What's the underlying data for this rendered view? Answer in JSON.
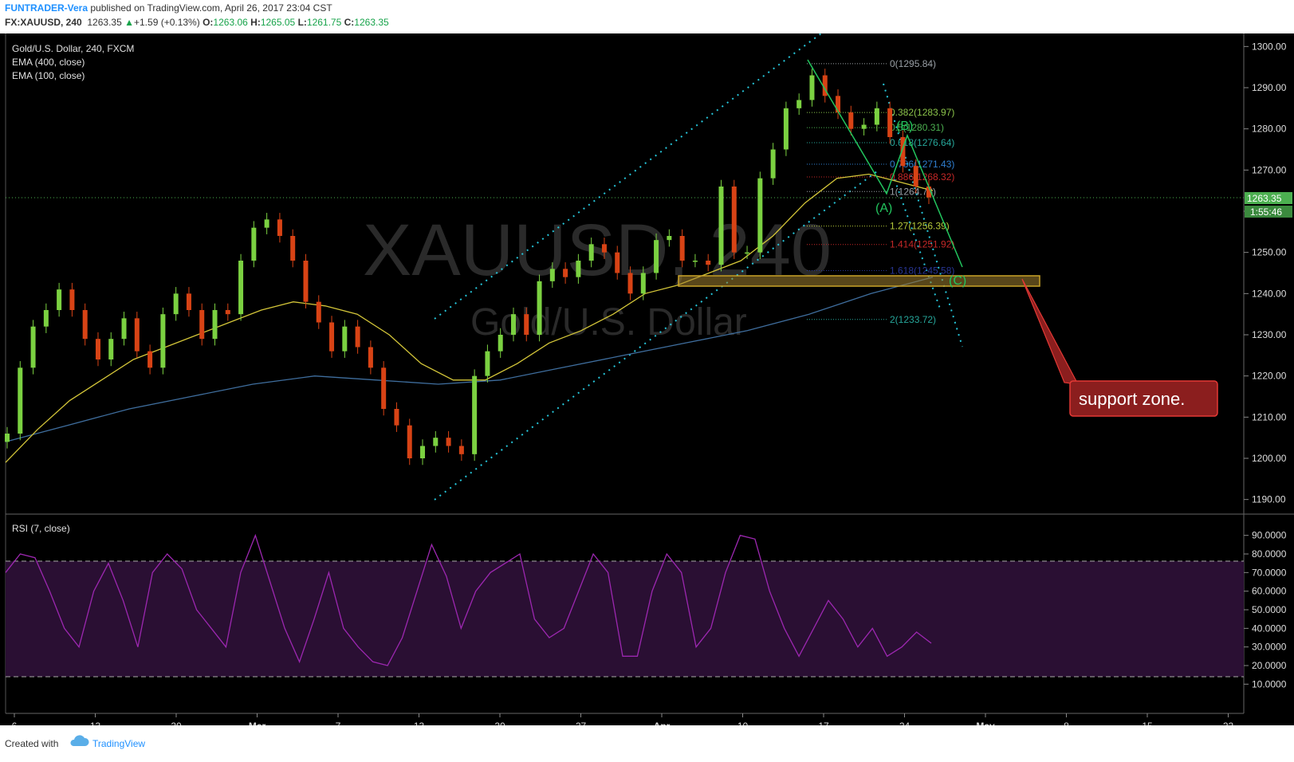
{
  "header": {
    "author": "FUNTRADER-Vera",
    "published": "published on TradingView.com, April 26, 2017 23:04 CST",
    "symbol": "FX:XAUUSD, 240",
    "price": "1263.35",
    "change": "+1.59 (+0.13%)",
    "o_label": "O:",
    "o_value": "1263.06",
    "h_label": "H:",
    "h_value": "1265.05",
    "l_label": "L:",
    "l_value": "1261.75",
    "c_label": "C:",
    "c_value": "1263.35"
  },
  "legend": {
    "title": "Gold/U.S. Dollar, 240, FXCM",
    "ema400": "EMA (400, close)",
    "ema100": "EMA (100, close)",
    "rsi": "RSI (7, close)"
  },
  "watermark": {
    "symbol": "XAUUSD, 240",
    "name": "Gold/U.S. Dollar"
  },
  "price_axis": {
    "ticks": [
      "1300.00",
      "1290.00",
      "1280.00",
      "1270.00",
      "1260.00",
      "1250.00",
      "1240.00",
      "1230.00",
      "1220.00",
      "1210.00",
      "1200.00",
      "1190.00"
    ],
    "last_price": "1263.35",
    "countdown": "1:55:46"
  },
  "rsi_axis": {
    "ticks": [
      "90.0000",
      "80.0000",
      "70.0000",
      "60.0000",
      "50.0000",
      "40.0000",
      "30.0000",
      "20.0000",
      "10.0000"
    ]
  },
  "time_axis": {
    "ticks": [
      "6",
      "13",
      "20",
      "Mar",
      "7",
      "13",
      "20",
      "27",
      "Apr",
      "10",
      "17",
      "24",
      "May",
      "8",
      "15",
      "22"
    ]
  },
  "fib_levels": [
    {
      "label": "0(1295.84)",
      "color": "#9aa0a6"
    },
    {
      "label": "0.382(1283.97)",
      "color": "#8bc34a"
    },
    {
      "label": "0.5(1280.31)",
      "color": "#4caf50"
    },
    {
      "label": "0.618(1276.64)",
      "color": "#26a69a"
    },
    {
      "label": "0.786(1271.43)",
      "color": "#2f7fd1"
    },
    {
      "label": "0.886(1268.32)",
      "color": "#c62828"
    },
    {
      "label": "1(1264.78)",
      "color": "#9aa0a6"
    },
    {
      "label": "1.27(1256.39)",
      "color": "#b5c93a"
    },
    {
      "label": "1.414(1251.92)",
      "color": "#c62828"
    },
    {
      "label": "1.618(1245.58)",
      "color": "#283593"
    },
    {
      "label": "2(1233.72)",
      "color": "#26a69a"
    }
  ],
  "waves": {
    "a": "(A)",
    "b": "(B)",
    "c": "(C)"
  },
  "annotation": "support zone.",
  "footer": {
    "created": "Created with",
    "brand": "TradingView"
  },
  "colors": {
    "up": "#7bd141",
    "down": "#d84315",
    "ema100": "#d4c639",
    "ema400": "#3f6e9e",
    "rsi": "#9c27b0",
    "channel": "#26c6da",
    "fib_arrow": "#22c55e",
    "callout_border": "#e53935",
    "zone": "#c9a227"
  },
  "chart_data": {
    "type": "line",
    "title": "Gold/U.S. Dollar, 240, FXCM",
    "ylim": [
      1188,
      1302
    ],
    "support_zone": [
      1243,
      1245.5
    ],
    "series": [
      {
        "name": "XAUUSD",
        "values": [
          1206,
          1222,
          1232,
          1236,
          1241,
          1236,
          1229,
          1224,
          1229,
          1234,
          1226,
          1222,
          1235,
          1240,
          1236,
          1229,
          1236,
          1235,
          1248,
          1256,
          1258,
          1254,
          1248,
          1238,
          1233,
          1226,
          1232,
          1227,
          1222,
          1212,
          1208,
          1200,
          1203,
          1205,
          1203,
          1201,
          1220,
          1226,
          1230,
          1235,
          1230,
          1243,
          1246,
          1244,
          1248,
          1252,
          1250,
          1245,
          1240,
          1245,
          1253,
          1254,
          1248,
          1248,
          1247,
          1266,
          1250,
          1250,
          1268,
          1275,
          1285,
          1287,
          1293,
          1288,
          1284,
          1280,
          1281,
          1285,
          1278,
          1271,
          1266,
          1263.35
        ]
      },
      {
        "name": "EMA (100, close)",
        "values": [
          1199,
          1207,
          1214,
          1219,
          1224,
          1227,
          1230,
          1233,
          1236,
          1238,
          1237,
          1235,
          1230,
          1223,
          1219,
          1219,
          1223,
          1228,
          1231,
          1235,
          1240,
          1242,
          1245,
          1248,
          1254,
          1262,
          1268,
          1269,
          1267,
          1265
        ]
      },
      {
        "name": "EMA (400, close)",
        "values": [
          1204,
          1208,
          1212,
          1215,
          1218,
          1220,
          1219,
          1218,
          1219,
          1222,
          1225,
          1228,
          1231,
          1235,
          1240,
          1244
        ]
      },
      {
        "name": "RSI (7, close)",
        "values": [
          70,
          80,
          78,
          60,
          40,
          30,
          60,
          75,
          55,
          30,
          70,
          80,
          72,
          50,
          40,
          30,
          70,
          90,
          65,
          40,
          22,
          45,
          70,
          40,
          30,
          22,
          20,
          35,
          60,
          85,
          68,
          40,
          60,
          70,
          75,
          80,
          45,
          35,
          40,
          60,
          80,
          70,
          25,
          25,
          60,
          80,
          70,
          30,
          40,
          70,
          90,
          88,
          60,
          40,
          25,
          40,
          55,
          45,
          30,
          40,
          25,
          30,
          38,
          32
        ]
      }
    ]
  }
}
